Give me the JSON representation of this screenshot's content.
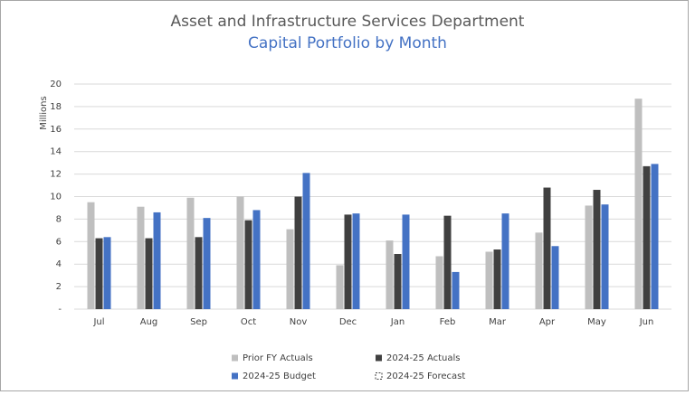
{
  "chart_data": {
    "type": "bar",
    "title": "Asset and Infrastructure Services Department",
    "subtitle": "Capital Portfolio by Month",
    "y_label": "Millions",
    "categories": [
      "Jul",
      "Aug",
      "Sep",
      "Oct",
      "Nov",
      "Dec",
      "Jan",
      "Feb",
      "Mar",
      "Apr",
      "May",
      "Jun"
    ],
    "series": [
      {
        "name": "Prior FY Actuals",
        "color": "#bfbfbf",
        "values": [
          9.5,
          9.1,
          9.9,
          10.0,
          7.1,
          3.9,
          6.1,
          4.7,
          5.1,
          6.8,
          9.2,
          18.7
        ]
      },
      {
        "name": "2024-25 Actuals",
        "color": "#404040",
        "values": [
          6.3,
          6.3,
          6.4,
          7.9,
          10.0,
          8.4,
          4.9,
          8.3,
          5.3,
          10.8,
          10.6,
          12.7
        ]
      },
      {
        "name": "2024-25 Budget",
        "color": "#4472c4",
        "values": [
          6.4,
          8.6,
          8.1,
          8.8,
          12.1,
          8.5,
          8.4,
          3.3,
          8.5,
          5.6,
          9.3,
          12.9
        ]
      },
      {
        "name": "2024-25 Forecast",
        "color": "#ffffff",
        "dashed": true,
        "values": [
          null,
          null,
          null,
          null,
          null,
          null,
          null,
          null,
          null,
          null,
          null,
          null
        ]
      }
    ],
    "ylim": [
      0,
      20
    ],
    "yticks": [
      {
        "value": 0,
        "label": "-"
      },
      2,
      4,
      6,
      8,
      10,
      12,
      14,
      16,
      18,
      20
    ],
    "grid": true,
    "legend": "bottom"
  }
}
